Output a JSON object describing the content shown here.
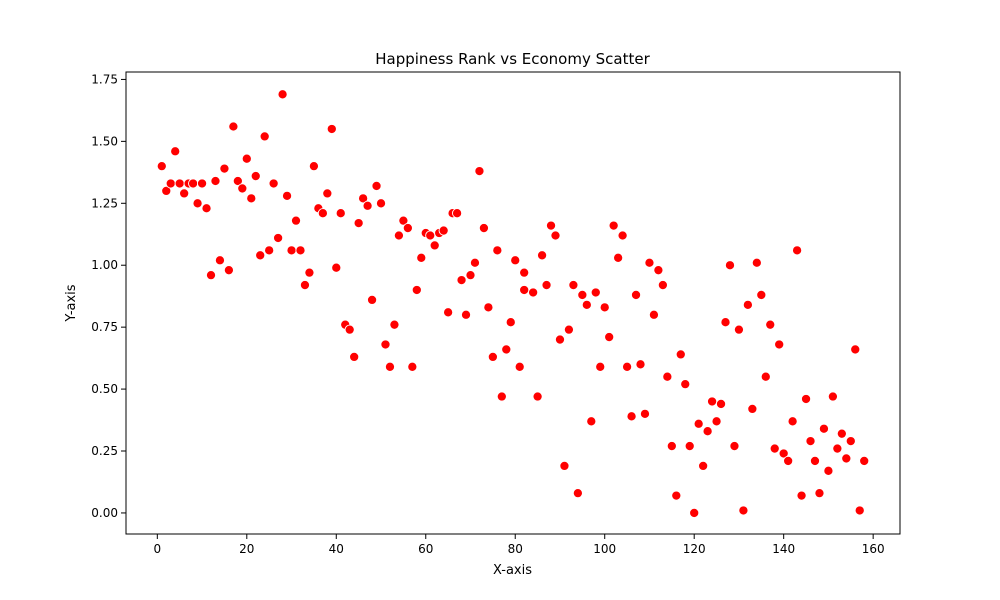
{
  "chart_data": {
    "type": "scatter",
    "title": "Happiness Rank vs Economy Scatter",
    "xlabel": "X-axis",
    "ylabel": "Y-axis",
    "xlim": [
      -7,
      166
    ],
    "ylim": [
      -0.085,
      1.78
    ],
    "xticks": [
      0,
      20,
      40,
      60,
      80,
      100,
      120,
      140,
      160
    ],
    "yticks": [
      0.0,
      0.25,
      0.5,
      0.75,
      1.0,
      1.25,
      1.5,
      1.75
    ],
    "ytick_labels": [
      "0.00",
      "0.25",
      "0.50",
      "0.75",
      "1.00",
      "1.25",
      "1.50",
      "1.75"
    ],
    "grid": false,
    "legend": "none",
    "marker_color": "#ff0000",
    "marker_edge_color": "#ffffff",
    "points": [
      [
        1,
        1.4
      ],
      [
        2,
        1.3
      ],
      [
        3,
        1.33
      ],
      [
        4,
        1.46
      ],
      [
        5,
        1.33
      ],
      [
        6,
        1.29
      ],
      [
        7,
        1.33
      ],
      [
        8,
        1.33
      ],
      [
        9,
        1.25
      ],
      [
        10,
        1.33
      ],
      [
        11,
        1.23
      ],
      [
        12,
        0.96
      ],
      [
        13,
        1.34
      ],
      [
        14,
        1.02
      ],
      [
        15,
        1.39
      ],
      [
        16,
        0.98
      ],
      [
        17,
        1.56
      ],
      [
        18,
        1.34
      ],
      [
        19,
        1.31
      ],
      [
        20,
        1.43
      ],
      [
        21,
        1.27
      ],
      [
        22,
        1.36
      ],
      [
        23,
        1.04
      ],
      [
        24,
        1.52
      ],
      [
        25,
        1.06
      ],
      [
        26,
        1.33
      ],
      [
        27,
        1.11
      ],
      [
        28,
        1.69
      ],
      [
        29,
        1.28
      ],
      [
        30,
        1.06
      ],
      [
        31,
        1.18
      ],
      [
        32,
        1.06
      ],
      [
        33,
        0.92
      ],
      [
        34,
        0.97
      ],
      [
        35,
        1.4
      ],
      [
        36,
        1.23
      ],
      [
        37,
        1.21
      ],
      [
        38,
        1.29
      ],
      [
        39,
        1.55
      ],
      [
        40,
        0.99
      ],
      [
        41,
        1.21
      ],
      [
        42,
        0.76
      ],
      [
        43,
        0.74
      ],
      [
        44,
        0.63
      ],
      [
        45,
        1.17
      ],
      [
        46,
        1.27
      ],
      [
        47,
        1.24
      ],
      [
        48,
        0.86
      ],
      [
        49,
        1.32
      ],
      [
        50,
        1.25
      ],
      [
        51,
        0.68
      ],
      [
        52,
        0.59
      ],
      [
        53,
        0.76
      ],
      [
        54,
        1.12
      ],
      [
        55,
        1.18
      ],
      [
        56,
        1.15
      ],
      [
        57,
        0.59
      ],
      [
        58,
        0.9
      ],
      [
        59,
        1.03
      ],
      [
        60,
        1.13
      ],
      [
        61,
        1.12
      ],
      [
        62,
        1.08
      ],
      [
        63,
        1.13
      ],
      [
        64,
        1.14
      ],
      [
        65,
        0.81
      ],
      [
        66,
        1.21
      ],
      [
        67,
        1.21
      ],
      [
        68,
        0.94
      ],
      [
        69,
        0.8
      ],
      [
        70,
        0.96
      ],
      [
        71,
        1.01
      ],
      [
        72,
        1.38
      ],
      [
        73,
        1.15
      ],
      [
        74,
        0.83
      ],
      [
        75,
        0.63
      ],
      [
        76,
        1.06
      ],
      [
        77,
        0.47
      ],
      [
        78,
        0.66
      ],
      [
        79,
        0.77
      ],
      [
        80,
        1.02
      ],
      [
        81,
        0.59
      ],
      [
        82,
        0.9
      ],
      [
        82,
        0.97
      ],
      [
        84,
        0.89
      ],
      [
        85,
        0.47
      ],
      [
        86,
        1.04
      ],
      [
        87,
        0.92
      ],
      [
        88,
        1.16
      ],
      [
        89,
        1.12
      ],
      [
        90,
        0.7
      ],
      [
        91,
        0.19
      ],
      [
        92,
        0.74
      ],
      [
        93,
        0.92
      ],
      [
        94,
        0.08
      ],
      [
        95,
        0.88
      ],
      [
        96,
        0.84
      ],
      [
        97,
        0.37
      ],
      [
        98,
        0.89
      ],
      [
        99,
        0.59
      ],
      [
        100,
        0.83
      ],
      [
        101,
        0.71
      ],
      [
        102,
        1.16
      ],
      [
        103,
        1.03
      ],
      [
        104,
        1.12
      ],
      [
        105,
        0.59
      ],
      [
        106,
        0.39
      ],
      [
        107,
        0.88
      ],
      [
        108,
        0.6
      ],
      [
        109,
        0.4
      ],
      [
        110,
        1.01
      ],
      [
        111,
        0.8
      ],
      [
        112,
        0.98
      ],
      [
        113,
        0.92
      ],
      [
        114,
        0.55
      ],
      [
        115,
        0.27
      ],
      [
        116,
        0.07
      ],
      [
        117,
        0.64
      ],
      [
        118,
        0.52
      ],
      [
        119,
        0.27
      ],
      [
        120,
        0.0
      ],
      [
        121,
        0.36
      ],
      [
        122,
        0.19
      ],
      [
        123,
        0.33
      ],
      [
        124,
        0.45
      ],
      [
        125,
        0.37
      ],
      [
        126,
        0.44
      ],
      [
        127,
        0.77
      ],
      [
        128,
        1.0
      ],
      [
        129,
        0.27
      ],
      [
        130,
        0.74
      ],
      [
        131,
        0.01
      ],
      [
        132,
        0.84
      ],
      [
        133,
        0.42
      ],
      [
        134,
        1.01
      ],
      [
        135,
        0.88
      ],
      [
        136,
        0.55
      ],
      [
        137,
        0.76
      ],
      [
        138,
        0.26
      ],
      [
        139,
        0.68
      ],
      [
        140,
        0.24
      ],
      [
        141,
        0.21
      ],
      [
        142,
        0.37
      ],
      [
        143,
        1.06
      ],
      [
        144,
        0.07
      ],
      [
        145,
        0.46
      ],
      [
        146,
        0.29
      ],
      [
        147,
        0.21
      ],
      [
        148,
        0.08
      ],
      [
        149,
        0.34
      ],
      [
        150,
        0.17
      ],
      [
        151,
        0.47
      ],
      [
        152,
        0.26
      ],
      [
        153,
        0.32
      ],
      [
        154,
        0.22
      ],
      [
        155,
        0.29
      ],
      [
        156,
        0.66
      ],
      [
        157,
        0.01
      ],
      [
        158,
        0.21
      ]
    ]
  }
}
